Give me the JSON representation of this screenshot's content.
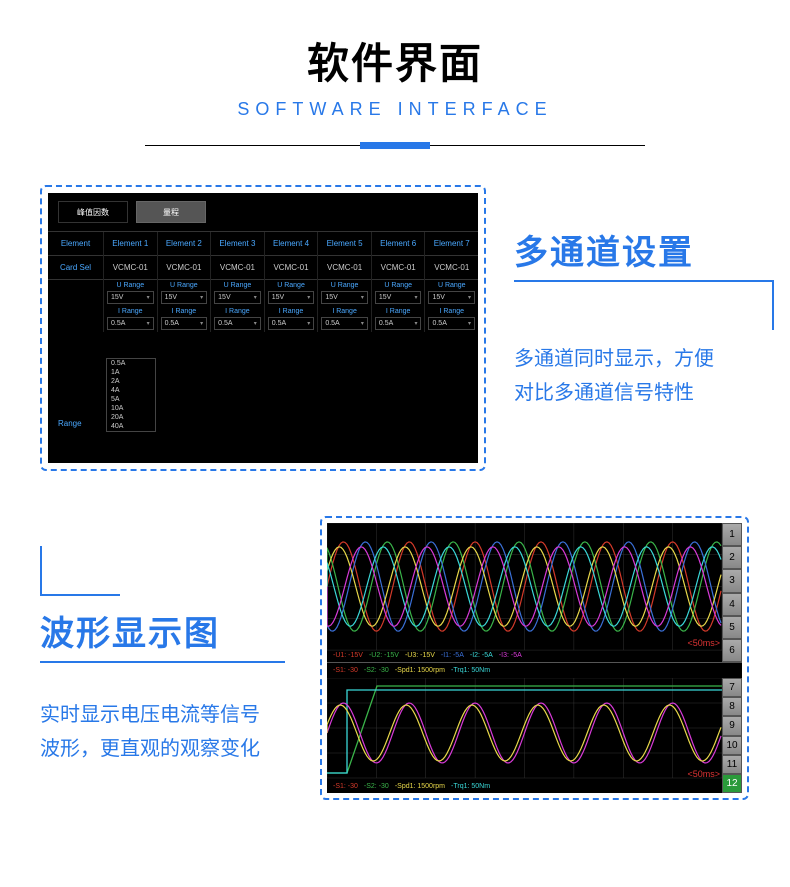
{
  "header": {
    "title_cn": "软件界面",
    "title_en": "SOFTWARE INTERFACE"
  },
  "section1": {
    "caption_title": "多通道设置",
    "caption_desc_l1": "多通道同时显示，方便",
    "caption_desc_l2": "对比多通道信号特性",
    "tabs": {
      "tab1": "峰值因数",
      "tab2": "量程"
    },
    "row_element_label": "Element",
    "elements": [
      "Element 1",
      "Element 2",
      "Element 3",
      "Element 4",
      "Element 5",
      "Element 6",
      "Element 7"
    ],
    "row_card_label": "Card Sel",
    "card_value": "VCMC-01",
    "urange_label": "U Range",
    "urange_value": "15V",
    "irange_label": "I Range",
    "irange_value": "0.5A",
    "side_label": "Range",
    "dropdown_items": [
      "0.5A",
      "1A",
      "2A",
      "4A",
      "5A",
      "10A",
      "20A",
      "40A"
    ]
  },
  "section2": {
    "caption_title": "波形显示图",
    "caption_desc_l1": "实时显示电压电流等信号",
    "caption_desc_l2": "波形，更直观的观察变化",
    "top_numbers": [
      "1",
      "2",
      "3",
      "4",
      "5",
      "6"
    ],
    "bot_numbers": [
      "7",
      "8",
      "9",
      "10",
      "11",
      "12"
    ],
    "ms_label": "<50ms>",
    "top_status": {
      "u1": "-U1: -15V",
      "u2": "-U2: -15V",
      "u3": "-U3: -15V",
      "i1": "-I1: -5A",
      "i2": "-I2: -5A",
      "i3": "-I3: -5A"
    },
    "mid_status": {
      "s1": "-S1: -30",
      "s2": "-S2: -30",
      "spd": "-Spd1: 1500rpm",
      "trq": "-Trq1: 50Nm"
    },
    "bot_status": {
      "s1": "-S1: -30",
      "s2": "-S2: -30",
      "spd": "-Spd1: 1500rpm",
      "trq": "-Trq1: 50Nm"
    },
    "wave_colors": {
      "red": "#d43a2a",
      "green": "#3ab54a",
      "yellow": "#e8d84a",
      "cyan": "#3ad8d8",
      "blue": "#3a70d8",
      "magenta": "#d83ad8",
      "grid": "#333333"
    }
  },
  "colors": {
    "accent": "#2878e8"
  }
}
